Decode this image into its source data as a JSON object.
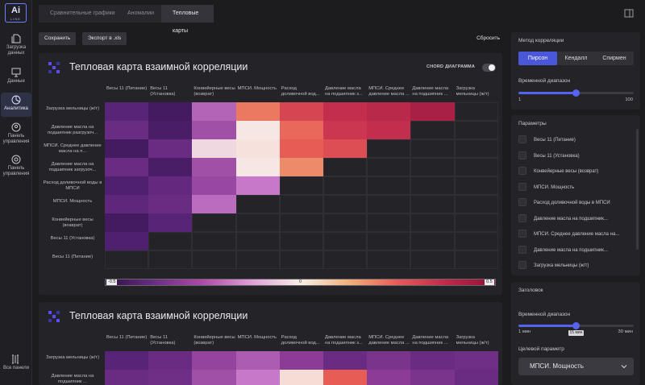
{
  "app": {
    "logo_main": "Ai",
    "logo_sub": "LINE"
  },
  "nav": [
    {
      "label": "Загрузка данных",
      "icon": "file-upload-icon"
    },
    {
      "label": "Данные",
      "icon": "monitor-icon"
    },
    {
      "label": "Аналитика",
      "icon": "pie-chart-icon",
      "active": true
    },
    {
      "label": "Панель управления",
      "icon": "user-circle-icon"
    },
    {
      "label": "Панель управления",
      "icon": "user-gear-icon"
    }
  ],
  "nav_bottom": {
    "label": "Все панели",
    "icon": "columns-icon"
  },
  "breadcrumbs": [
    "Сравнительные графики",
    "Аномалии",
    "Тепловые карты"
  ],
  "toolbar": {
    "save_label": "Сохранить",
    "export_label": "Экспорт в .xls",
    "reset_label": "Сбросить"
  },
  "heatmap1": {
    "title": "Тепловая карта взаимной корреляции",
    "chord_label": "CHORD ДИАГРАММА",
    "columns": [
      "Весы 11 (Питание)",
      "Весы 11 (Установка)",
      "Конвейерные весы (возврат)",
      "МПСИ. Мощность",
      "Расход доливочной вод...",
      "Давление масла на подшипник з...",
      "МПСИ. Среднее давление масла ...",
      "Давление масла на подшипник ...",
      "Загрузка мельницы (ж/т)"
    ],
    "rows": [
      "Загрузка мельницы (ж/т)",
      "Давление масла на подшипник разгрузоч...",
      "МПСИ. Среднее давление масла на п...",
      "Давление масла на подшипник загрузоч...",
      "Расход доливочной воды в МПСИ",
      "МПСИ. Мощность",
      "Конвейерные весы (возврат)",
      "Весы 11 (Установка)",
      "Весы 11 (Питание)"
    ],
    "scale_min": "-0.5",
    "scale_mid": "0",
    "scale_max": "0.5"
  },
  "heatmap2": {
    "title": "Тепловая карта взаимной корреляции",
    "columns": [
      "Весы 11 (Питание)",
      "Весы 11 (Установка)",
      "Конвейерные весы (возврат)",
      "МПСИ. Мощность",
      "Расход доливочной вод...",
      "Давление масла на подшипник з...",
      "МПСИ. Среднее давление масла ...",
      "Давление масла на подшипник ...",
      "Загрузка мельницы (ж/т)"
    ],
    "rows": [
      "Загрузка мельницы (ж/т)",
      "Давление масла на подшипник ..."
    ]
  },
  "chart_data": [
    {
      "type": "heatmap",
      "title": "Тепловая карта взаимной корреляции",
      "x": [
        "Весы 11 (Питание)",
        "Весы 11 (Установка)",
        "Конвейерные весы (возврат)",
        "МПСИ. Мощность",
        "Расход доливочной вод...",
        "Давление масла на подшипник з...",
        "МПСИ. Среднее давление масла ...",
        "Давление масла на подшипник ...",
        "Загрузка мельницы (ж/т)"
      ],
      "y": [
        "Загрузка мельницы (ж/т)",
        "Давление масла на подшипник разгрузоч...",
        "МПСИ. Среднее давление масла на п...",
        "Давление масла на подшипник загрузоч...",
        "Расход доливочной воды в МПСИ",
        "МПСИ. Мощность",
        "Конвейерные весы (возврат)",
        "Весы 11 (Установка)",
        "Весы 11 (Питание)"
      ],
      "values": [
        [
          -0.35,
          -0.42,
          -0.1,
          0.25,
          0.35,
          0.4,
          0.42,
          0.45,
          null
        ],
        [
          -0.3,
          -0.4,
          -0.15,
          0.03,
          0.28,
          0.38,
          0.4,
          null,
          null
        ],
        [
          -0.42,
          -0.3,
          0.02,
          0.04,
          0.3,
          0.33,
          null,
          null,
          null
        ],
        [
          -0.3,
          -0.4,
          -0.15,
          0.03,
          0.22,
          null,
          null,
          null,
          null
        ],
        [
          -0.38,
          -0.32,
          -0.17,
          -0.05,
          null,
          null,
          null,
          null,
          null
        ],
        [
          -0.33,
          -0.3,
          -0.08,
          null,
          null,
          null,
          null,
          null,
          null
        ],
        [
          -0.42,
          -0.35,
          null,
          null,
          null,
          null,
          null,
          null,
          null
        ],
        [
          -0.38,
          null,
          null,
          null,
          null,
          null,
          null,
          null,
          null
        ],
        [
          null,
          null,
          null,
          null,
          null,
          null,
          null,
          null,
          null
        ]
      ],
      "zlim": [
        -0.5,
        0.5
      ]
    },
    {
      "type": "heatmap",
      "title": "Тепловая карта взаимной корреляции",
      "x": [
        "Весы 11 (Питание)",
        "Весы 11 (Установка)",
        "Конвейерные весы (возврат)",
        "МПСИ. Мощность",
        "Расход доливочной вод...",
        "Давление масла на подшипник з...",
        "МПСИ. Среднее давление масла ...",
        "Давление масла на подшипник ...",
        "Загрузка мельницы (ж/т)"
      ],
      "y": [
        "Загрузка мельницы (ж/т)",
        "Давление масла на подшипник ..."
      ],
      "values": [
        [
          -0.35,
          -0.3,
          -0.18,
          -0.12,
          -0.2,
          -0.3,
          -0.25,
          -0.3,
          -0.28
        ],
        [
          -0.3,
          -0.28,
          -0.15,
          -0.05,
          0.05,
          0.3,
          -0.2,
          -0.25,
          -0.3
        ]
      ],
      "zlim": [
        -0.5,
        0.5
      ]
    }
  ],
  "sidebar": {
    "method_title": "Метод корреляции",
    "methods": [
      "Пирсон",
      "Кендалл",
      "Спирмен"
    ],
    "method_selected": 0,
    "range_title": "Временной диапазон",
    "range_min": "1",
    "range_max": "100",
    "range_value": 0.5,
    "params_title": "Параметры",
    "params": [
      "Весы 11 (Питание)",
      "Весы 11 (Установка)",
      "Конвейерные весы (возврат)",
      "МПСИ. Мощность",
      "Расход доливочной воды в МПСИ",
      "Давление масла на подшипник...",
      "МПСИ. Среднее давление масла на...",
      "Давление масла на подшипник...",
      "Загрузка мельницы (ж/т)"
    ],
    "header_title": "Заголовок",
    "range2_title": "Временной диапазон",
    "range2_min": "1 мин",
    "range2_max": "30 мин",
    "range2_tip": "15 мин",
    "range2_value": 0.5,
    "target_title": "Целевой параметр",
    "target_value": "МПСИ. Мощность"
  }
}
